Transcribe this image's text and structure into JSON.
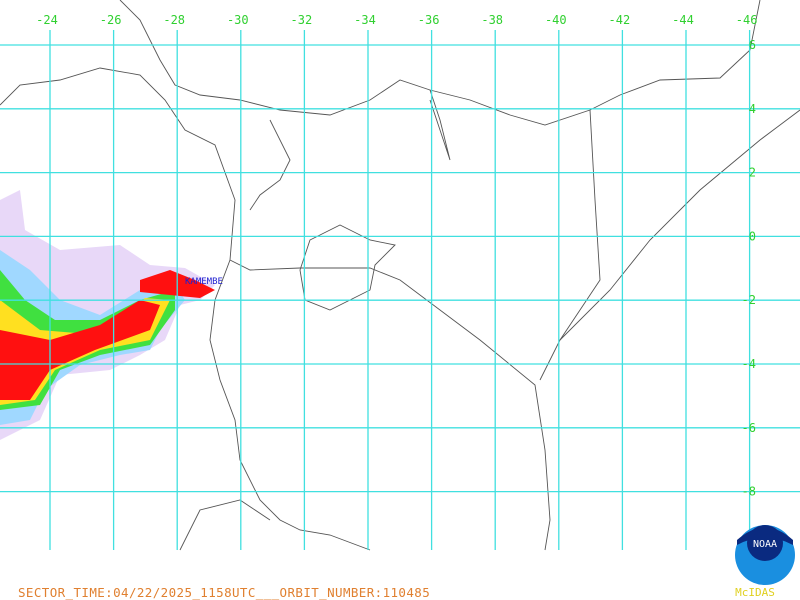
{
  "map": {
    "lon_labels": [
      "-24",
      "-26",
      "-28",
      "-30",
      "-32",
      "-34",
      "-36",
      "-38",
      "-40",
      "-42",
      "-44",
      "-46"
    ],
    "lat_labels": [
      "6",
      "4",
      "2",
      "0",
      "-2",
      "-4",
      "-6",
      "-8"
    ],
    "station_labels": [
      "KAMEMBE"
    ],
    "footer": "SECTOR_TIME:04/22/2025_1158UTC___ORBIT_NUMBER:110485",
    "logo": {
      "name": "NOAA",
      "credit": "McIDAS"
    }
  }
}
